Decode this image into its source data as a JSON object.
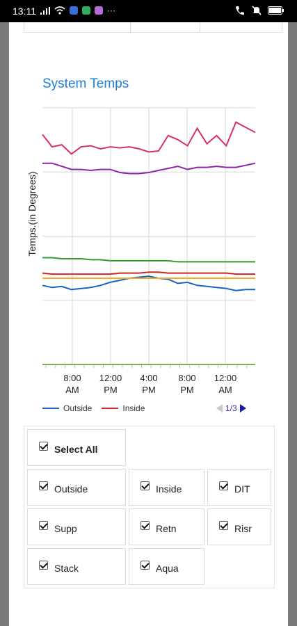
{
  "status_bar": {
    "time": "13:11",
    "apps": [
      "#3a6fd8",
      "#2eae61",
      "#b56ad8"
    ]
  },
  "chart_title": "System Temps",
  "chart_data": {
    "type": "line",
    "ylabel": "Temps.(in Degrees)",
    "xlabel": "",
    "title": "System Temps",
    "x_ticks": [
      "8:00 AM",
      "12:00 PM",
      "4:00 PM",
      "8:00 PM",
      "12:00 AM"
    ],
    "grid": true,
    "series": [
      {
        "name": "Outside",
        "color": "#1565c0",
        "values": [
          77,
          75,
          76,
          73,
          74,
          75,
          77,
          80,
          82,
          84,
          85,
          86,
          84,
          83,
          79,
          80,
          77,
          76,
          75,
          74,
          72,
          73,
          73
        ]
      },
      {
        "name": "Inside",
        "color": "#c62828",
        "values": [
          89,
          88,
          88,
          88,
          88,
          88,
          88,
          88,
          89,
          89,
          89,
          90,
          90,
          89,
          89,
          89,
          89,
          89,
          89,
          89,
          88,
          88,
          88
        ]
      },
      {
        "name": "",
        "color": "#f9a825",
        "values": [
          84,
          84,
          84,
          84,
          84,
          84,
          84,
          84,
          84,
          84,
          84,
          84,
          84,
          84,
          84,
          84,
          84,
          84,
          84,
          84,
          84,
          84,
          84
        ]
      },
      {
        "name": "",
        "color": "#2e9c35",
        "values": [
          104,
          104,
          103,
          103,
          103,
          102,
          102,
          101,
          101,
          101,
          101,
          101,
          101,
          101,
          100,
          100,
          100,
          100,
          100,
          100,
          100,
          100,
          100
        ]
      },
      {
        "name": "",
        "color": "#8e24aa",
        "values": [
          196,
          196,
          193,
          190,
          190,
          189,
          190,
          190,
          187,
          186,
          186,
          187,
          189,
          191,
          193,
          190,
          192,
          192,
          193,
          192,
          192,
          194,
          196
        ]
      },
      {
        "name": "",
        "color": "#d62f6c",
        "values": [
          224,
          212,
          214,
          205,
          212,
          213,
          210,
          212,
          211,
          212,
          210,
          207,
          208,
          223,
          219,
          213,
          230,
          215,
          223,
          213,
          236,
          231,
          226
        ]
      },
      {
        "name": "",
        "color": "#7cb342",
        "values": [
          0,
          0,
          0,
          0,
          0,
          0,
          0,
          0,
          0,
          0,
          0,
          0,
          0,
          0,
          0,
          0,
          0,
          0,
          0,
          0,
          0,
          0,
          0
        ]
      }
    ]
  },
  "legend": {
    "items": [
      {
        "label": "Outside",
        "color": "#1565c0"
      },
      {
        "label": "Inside",
        "color": "#c62828"
      }
    ],
    "pager": "1/3"
  },
  "checkboxes": {
    "select_all": "Select All",
    "items": [
      "Outside",
      "Inside",
      "DIT",
      "Supp",
      "Retn",
      "Risr",
      "Stack",
      "Aqua"
    ]
  }
}
